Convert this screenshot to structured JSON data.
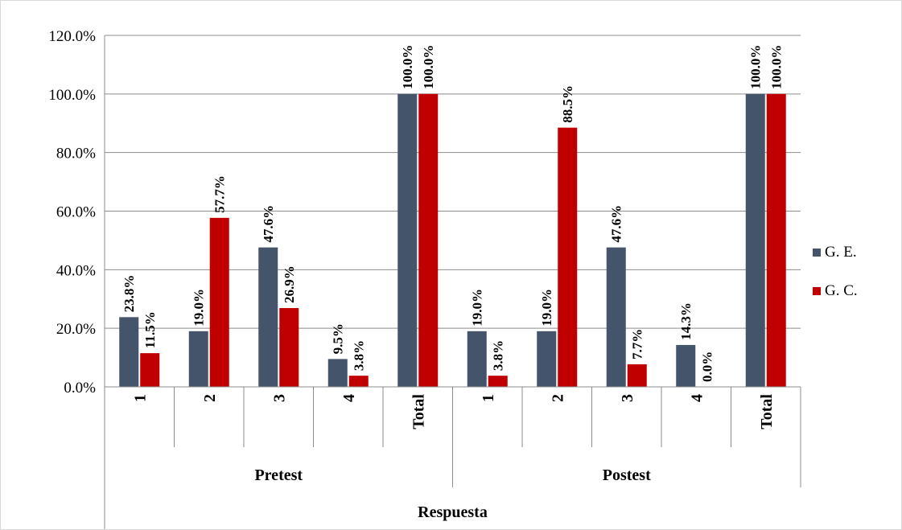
{
  "chart_data": {
    "type": "bar",
    "xlabel": "Respuesta",
    "groups": [
      {
        "label": "Pretest",
        "categories": [
          "1",
          "2",
          "3",
          "4",
          "Total"
        ]
      },
      {
        "label": "Postest",
        "categories": [
          "1",
          "2",
          "3",
          "4",
          "Total"
        ]
      }
    ],
    "series": [
      {
        "name": "G. E.",
        "color": "#44546a",
        "values": [
          23.8,
          19.0,
          47.6,
          9.5,
          100.0,
          19.0,
          19.0,
          47.6,
          14.3,
          100.0
        ],
        "labels": [
          "23.8%",
          "19.0%",
          "47.6%",
          "9.5%",
          "100.0%",
          "19.0%",
          "19.0%",
          "47.6%",
          "14.3%",
          "100.0%"
        ]
      },
      {
        "name": "G. C.",
        "color": "#c00000",
        "values": [
          11.5,
          57.7,
          26.9,
          3.8,
          100.0,
          3.8,
          88.5,
          7.7,
          0.0,
          100.0
        ],
        "labels": [
          "11.5%",
          "57.7%",
          "26.9%",
          "3.8%",
          "100.0%",
          "3.8%",
          "88.5%",
          "7.7%",
          "0.0%",
          "100.0%"
        ]
      }
    ],
    "ylim": [
      0,
      120
    ],
    "yticks": [
      0,
      20,
      40,
      60,
      80,
      100,
      120
    ],
    "ytick_labels": [
      "0.0%",
      "20.0%",
      "40.0%",
      "60.0%",
      "80.0%",
      "100.0%",
      "120.0%"
    ],
    "grid": true,
    "legend_position": "right"
  }
}
